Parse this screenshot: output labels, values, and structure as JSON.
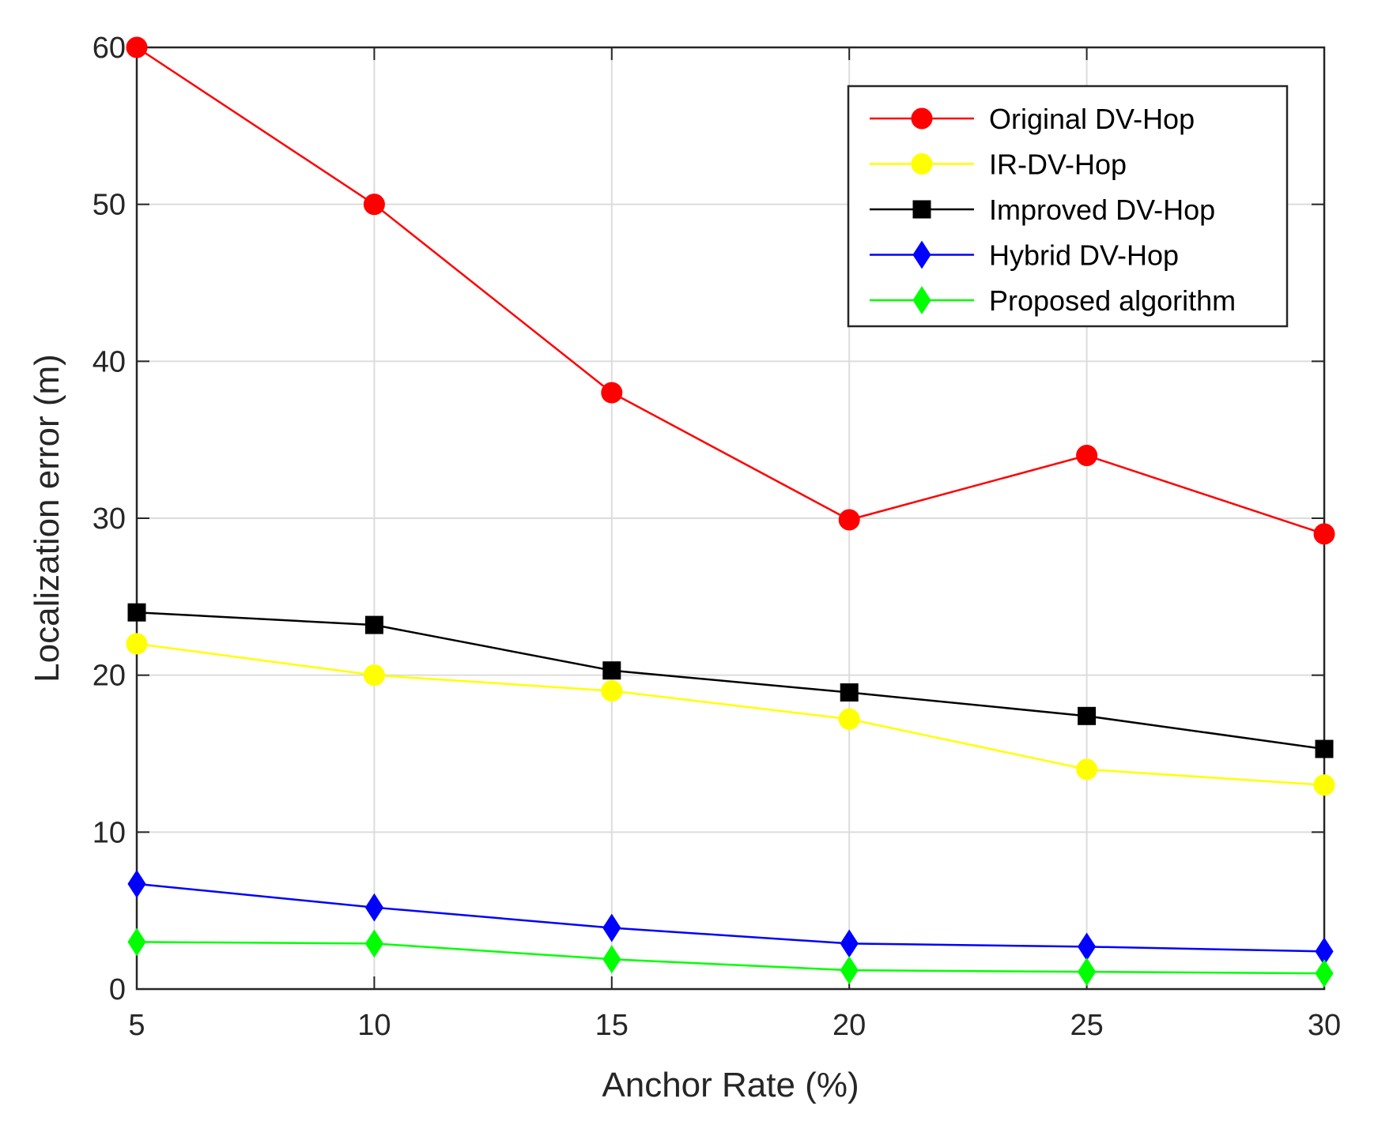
{
  "chart_data": {
    "type": "line",
    "title": "",
    "xlabel": "Anchor Rate (%)",
    "ylabel": "Localization error (m)",
    "xlim": [
      5,
      30
    ],
    "ylim": [
      0,
      60
    ],
    "x": [
      5,
      10,
      15,
      20,
      25,
      30
    ],
    "xticks": [
      "5",
      "10",
      "15",
      "20",
      "25",
      "30"
    ],
    "yticks": [
      "0",
      "10",
      "20",
      "30",
      "40",
      "50",
      "60"
    ],
    "grid": true,
    "legend_position": "top-right",
    "series": [
      {
        "name": "Original DV-Hop",
        "color": "#ff0000",
        "marker": "circle",
        "values": [
          60,
          50,
          38,
          29.9,
          34,
          29
        ]
      },
      {
        "name": "IR-DV-Hop",
        "color": "#ffff00",
        "marker": "circle",
        "values": [
          22,
          20,
          19,
          17.2,
          14,
          13
        ]
      },
      {
        "name": "Improved DV-Hop",
        "color": "#000000",
        "marker": "square",
        "values": [
          24,
          23.2,
          20.3,
          18.9,
          17.4,
          15.3
        ]
      },
      {
        "name": "Hybrid DV-Hop",
        "color": "#0000ff",
        "marker": "diamond",
        "values": [
          6.7,
          5.2,
          3.9,
          2.9,
          2.7,
          2.4
        ]
      },
      {
        "name": "Proposed algorithm",
        "color": "#00ff00",
        "marker": "diamond",
        "values": [
          3.0,
          2.9,
          1.9,
          1.2,
          1.1,
          1.0
        ]
      }
    ]
  }
}
